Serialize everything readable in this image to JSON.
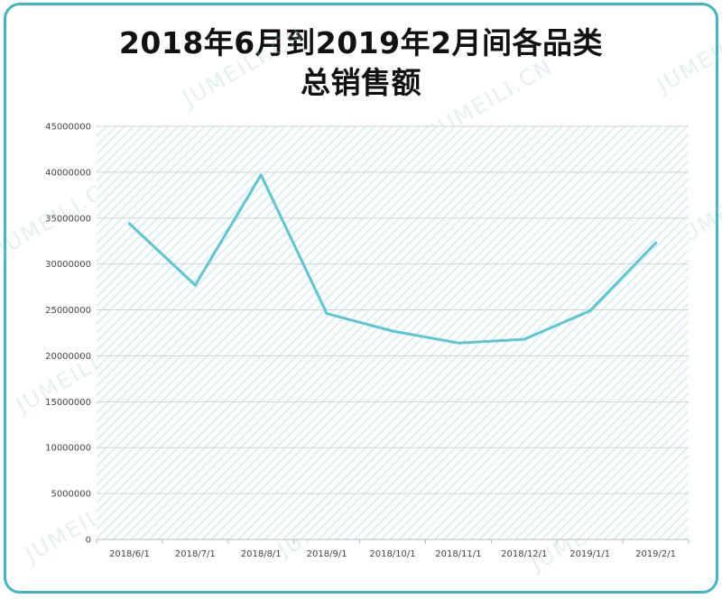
{
  "title_line1": "2018年6月到2019年2月间各品类",
  "title_line2": "总销售额",
  "watermark": "JUMEILI.CN",
  "colors": {
    "border": "#3fb6c7",
    "line": "#5cc6d3",
    "plot_hatch": "#bfe6ea"
  },
  "chart_data": {
    "type": "line",
    "title": "2018年6月到2019年2月间各品类总销售额",
    "xlabel": "",
    "ylabel": "",
    "categories": [
      "2018/6/1",
      "2018/7/1",
      "2018/8/1",
      "2018/9/1",
      "2018/10/1",
      "2018/11/1",
      "2018/12/1",
      "2019/1/1",
      "2019/2/1"
    ],
    "values": [
      34400000,
      27700000,
      39700000,
      24600000,
      22700000,
      21400000,
      21800000,
      24900000,
      32300000
    ],
    "ylim": [
      0,
      45000000
    ],
    "yticks": [
      0,
      5000000,
      10000000,
      15000000,
      20000000,
      25000000,
      30000000,
      35000000,
      40000000,
      45000000
    ],
    "ytick_labels": [
      "0",
      "5000000",
      "10000000",
      "15000000",
      "20000000",
      "25000000",
      "30000000",
      "35000000",
      "40000000",
      "45000000"
    ],
    "grid": true,
    "legend": "none"
  }
}
